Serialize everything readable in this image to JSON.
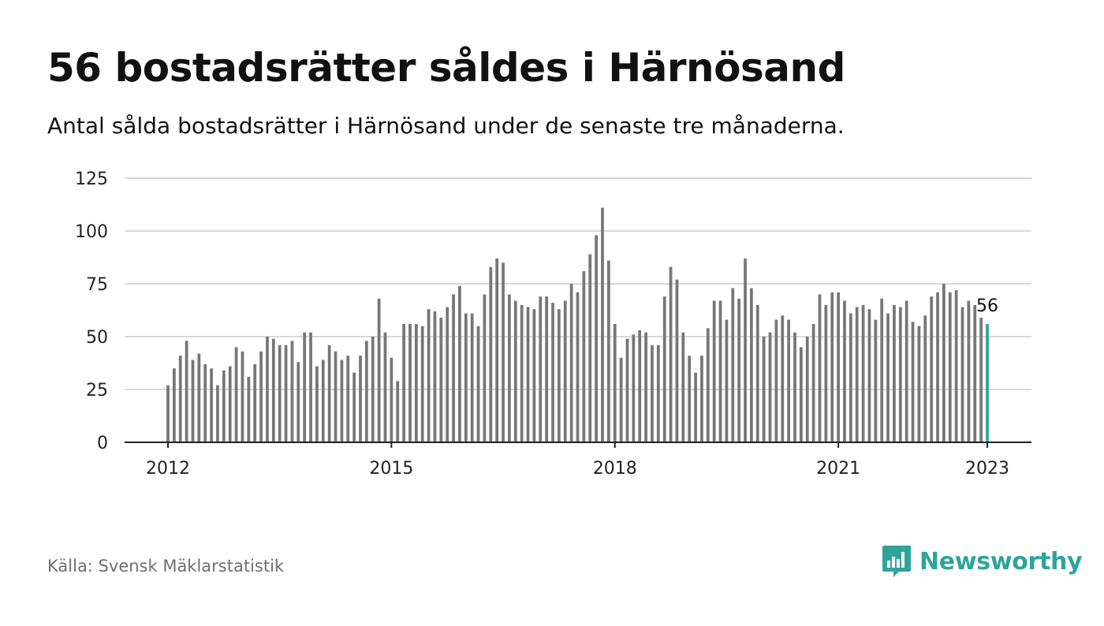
{
  "header": {
    "title": "56 bostadsrätter såldes i Härnösand",
    "subtitle": "Antal sålda bostadsrätter i Härnösand under de senaste tre månaderna."
  },
  "footer": {
    "source": "Källa: Svensk Mäklarstatistik",
    "logo_text": "Newsworthy"
  },
  "colors": {
    "bar": "#777777",
    "highlight": "#2ea49a",
    "grid": "#d9d9d9",
    "axis": "#222222",
    "logo": "#2ea49a"
  },
  "chart_data": {
    "type": "bar",
    "title": "56 bostadsrätter såldes i Härnösand",
    "subtitle": "Antal sålda bostadsrätter i Härnösand under de senaste tre månaderna.",
    "xlabel": "",
    "ylabel": "",
    "ylim": [
      0,
      125
    ],
    "yticks": [
      0,
      25,
      50,
      75,
      100,
      125
    ],
    "xticks": [
      {
        "label": "2012",
        "index": 0
      },
      {
        "label": "2015",
        "index": 36
      },
      {
        "label": "2018",
        "index": 72
      },
      {
        "label": "2021",
        "index": 108
      },
      {
        "label": "2023",
        "index": 132
      }
    ],
    "grid": true,
    "start_period": "2012-01",
    "end_period": "2023-01",
    "frequency": "monthly",
    "highlight_last": true,
    "annotation": {
      "text": "56",
      "index": 132
    },
    "values": [
      27,
      35,
      41,
      48,
      39,
      42,
      37,
      35,
      27,
      34,
      36,
      45,
      43,
      31,
      37,
      43,
      50,
      49,
      46,
      46,
      48,
      38,
      52,
      52,
      36,
      39,
      46,
      43,
      39,
      41,
      33,
      41,
      48,
      50,
      68,
      52,
      40,
      29,
      56,
      56,
      56,
      55,
      63,
      62,
      59,
      64,
      70,
      74,
      61,
      61,
      55,
      70,
      83,
      87,
      85,
      70,
      67,
      65,
      64,
      63,
      69,
      69,
      66,
      63,
      67,
      75,
      71,
      81,
      89,
      98,
      111,
      86,
      56,
      40,
      49,
      51,
      53,
      52,
      46,
      46,
      69,
      83,
      77,
      52,
      41,
      33,
      41,
      54,
      67,
      67,
      58,
      73,
      68,
      87,
      73,
      65,
      50,
      52,
      58,
      60,
      58,
      52,
      45,
      50,
      56,
      70,
      65,
      71,
      71,
      67,
      61,
      64,
      65,
      63,
      58,
      68,
      61,
      65,
      64,
      67,
      57,
      55,
      60,
      69,
      71,
      75,
      71,
      72,
      64,
      67,
      65,
      59,
      56
    ]
  }
}
